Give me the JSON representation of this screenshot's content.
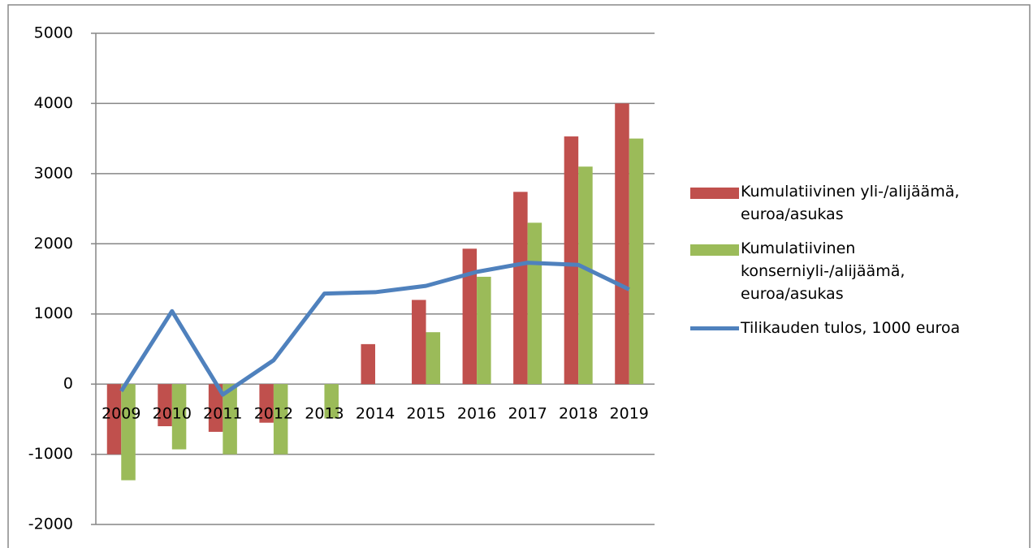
{
  "chart_data": {
    "type": "bar_line",
    "categories": [
      "2009",
      "2010",
      "2011",
      "2012",
      "2013",
      "2014",
      "2015",
      "2016",
      "2017",
      "2018",
      "2019"
    ],
    "series": [
      {
        "name": "Kumulatiivinen yli-/alijäämä, euroa/asukas",
        "type": "bar",
        "color": "#c0504d",
        "values": [
          -1000,
          -600,
          -680,
          -550,
          null,
          570,
          1200,
          1930,
          2740,
          3530,
          4000
        ]
      },
      {
        "name": "Kumulatiivinen konserniyli-/alijäämä, euroa/asukas",
        "type": "bar",
        "color": "#9bbb59",
        "values": [
          -1370,
          -930,
          -1000,
          -1000,
          -490,
          null,
          740,
          1530,
          2300,
          3100,
          3500
        ]
      },
      {
        "name": "Tilikauden tulos, 1000 euroa",
        "type": "line",
        "color": "#4f81bd",
        "values": [
          -100,
          1040,
          -150,
          340,
          1290,
          1310,
          1400,
          1600,
          1730,
          1700,
          1350
        ]
      }
    ],
    "ylim": [
      -2000,
      5000
    ],
    "yticks": [
      -2000,
      -1000,
      0,
      1000,
      2000,
      3000,
      4000,
      5000
    ],
    "grid": true,
    "legend": "right"
  }
}
